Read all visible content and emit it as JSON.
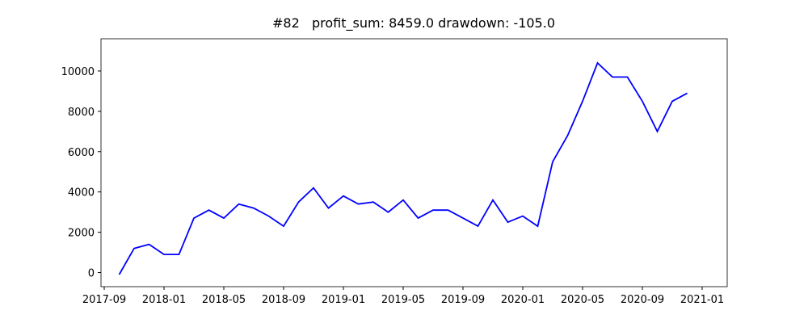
{
  "chart_data": {
    "type": "line",
    "title": "#82   profit_sum: 8459.0 drawdown: -105.0",
    "x": [
      "2017-10",
      "2017-11",
      "2017-12",
      "2018-01",
      "2018-02",
      "2018-03",
      "2018-04",
      "2018-05",
      "2018-06",
      "2018-07",
      "2018-08",
      "2018-09",
      "2018-10",
      "2018-11",
      "2018-12",
      "2019-01",
      "2019-02",
      "2019-03",
      "2019-04",
      "2019-05",
      "2019-06",
      "2019-07",
      "2019-08",
      "2019-09",
      "2019-10",
      "2019-11",
      "2019-12",
      "2020-01",
      "2020-02",
      "2020-03",
      "2020-04",
      "2020-05",
      "2020-06",
      "2020-07",
      "2020-08",
      "2020-09",
      "2020-10",
      "2020-11",
      "2020-12"
    ],
    "series": [
      {
        "color": "#0000ff",
        "values": [
          -100,
          1200,
          1400,
          900,
          900,
          2700,
          3100,
          2700,
          3400,
          3200,
          2800,
          2300,
          3500,
          4200,
          3200,
          3800,
          3400,
          3500,
          3000,
          3600,
          2700,
          3100,
          3100,
          2700,
          2300,
          3600,
          2500,
          2800,
          2300,
          5500,
          6800,
          8500,
          10400,
          9700,
          9700,
          8500,
          7000,
          8500,
          8900
        ]
      }
    ],
    "xlim": [
      "2017-09",
      "2021-01"
    ],
    "xticks": [
      "2017-09",
      "2018-01",
      "2018-05",
      "2018-09",
      "2019-01",
      "2019-05",
      "2019-09",
      "2020-01",
      "2020-05",
      "2020-09",
      "2021-01"
    ],
    "ylim": [
      -700,
      11600
    ],
    "yticks": [
      0,
      2000,
      4000,
      6000,
      8000,
      10000
    ]
  }
}
